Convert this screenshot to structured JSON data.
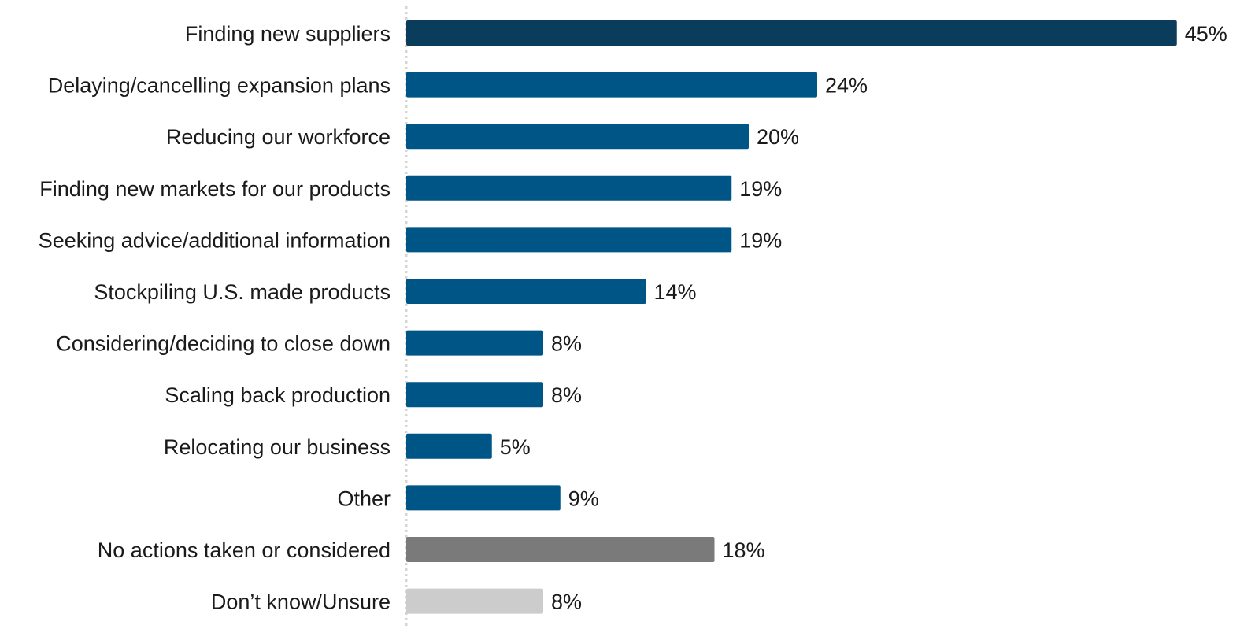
{
  "chart_data": {
    "type": "bar",
    "orientation": "horizontal",
    "title": "",
    "xlabel": "",
    "ylabel": "",
    "xlim": [
      0,
      45
    ],
    "grid": false,
    "legend": "none",
    "categories": [
      "Finding new suppliers",
      "Delaying/cancelling expansion plans",
      "Reducing our workforce",
      "Finding new markets for our products",
      "Seeking advice/additional information",
      "Stockpiling U.S. made products",
      "Considering/deciding to close down",
      "Scaling back production",
      "Relocating our business",
      "Other",
      "No actions taken or considered",
      "Don’t know/Unsure"
    ],
    "values": [
      45,
      24,
      20,
      19,
      19,
      14,
      8,
      8,
      5,
      9,
      18,
      8
    ],
    "value_labels": [
      "45%",
      "24%",
      "20%",
      "19%",
      "19%",
      "14%",
      "8%",
      "8%",
      "5%",
      "9%",
      "18%",
      "8%"
    ],
    "colors": [
      "#0a3d5c",
      "#005587",
      "#005587",
      "#005587",
      "#005587",
      "#005587",
      "#005587",
      "#005587",
      "#005587",
      "#005587",
      "#7a7a7a",
      "#cccccc"
    ],
    "axis_line_color": "#d6d6d6"
  }
}
